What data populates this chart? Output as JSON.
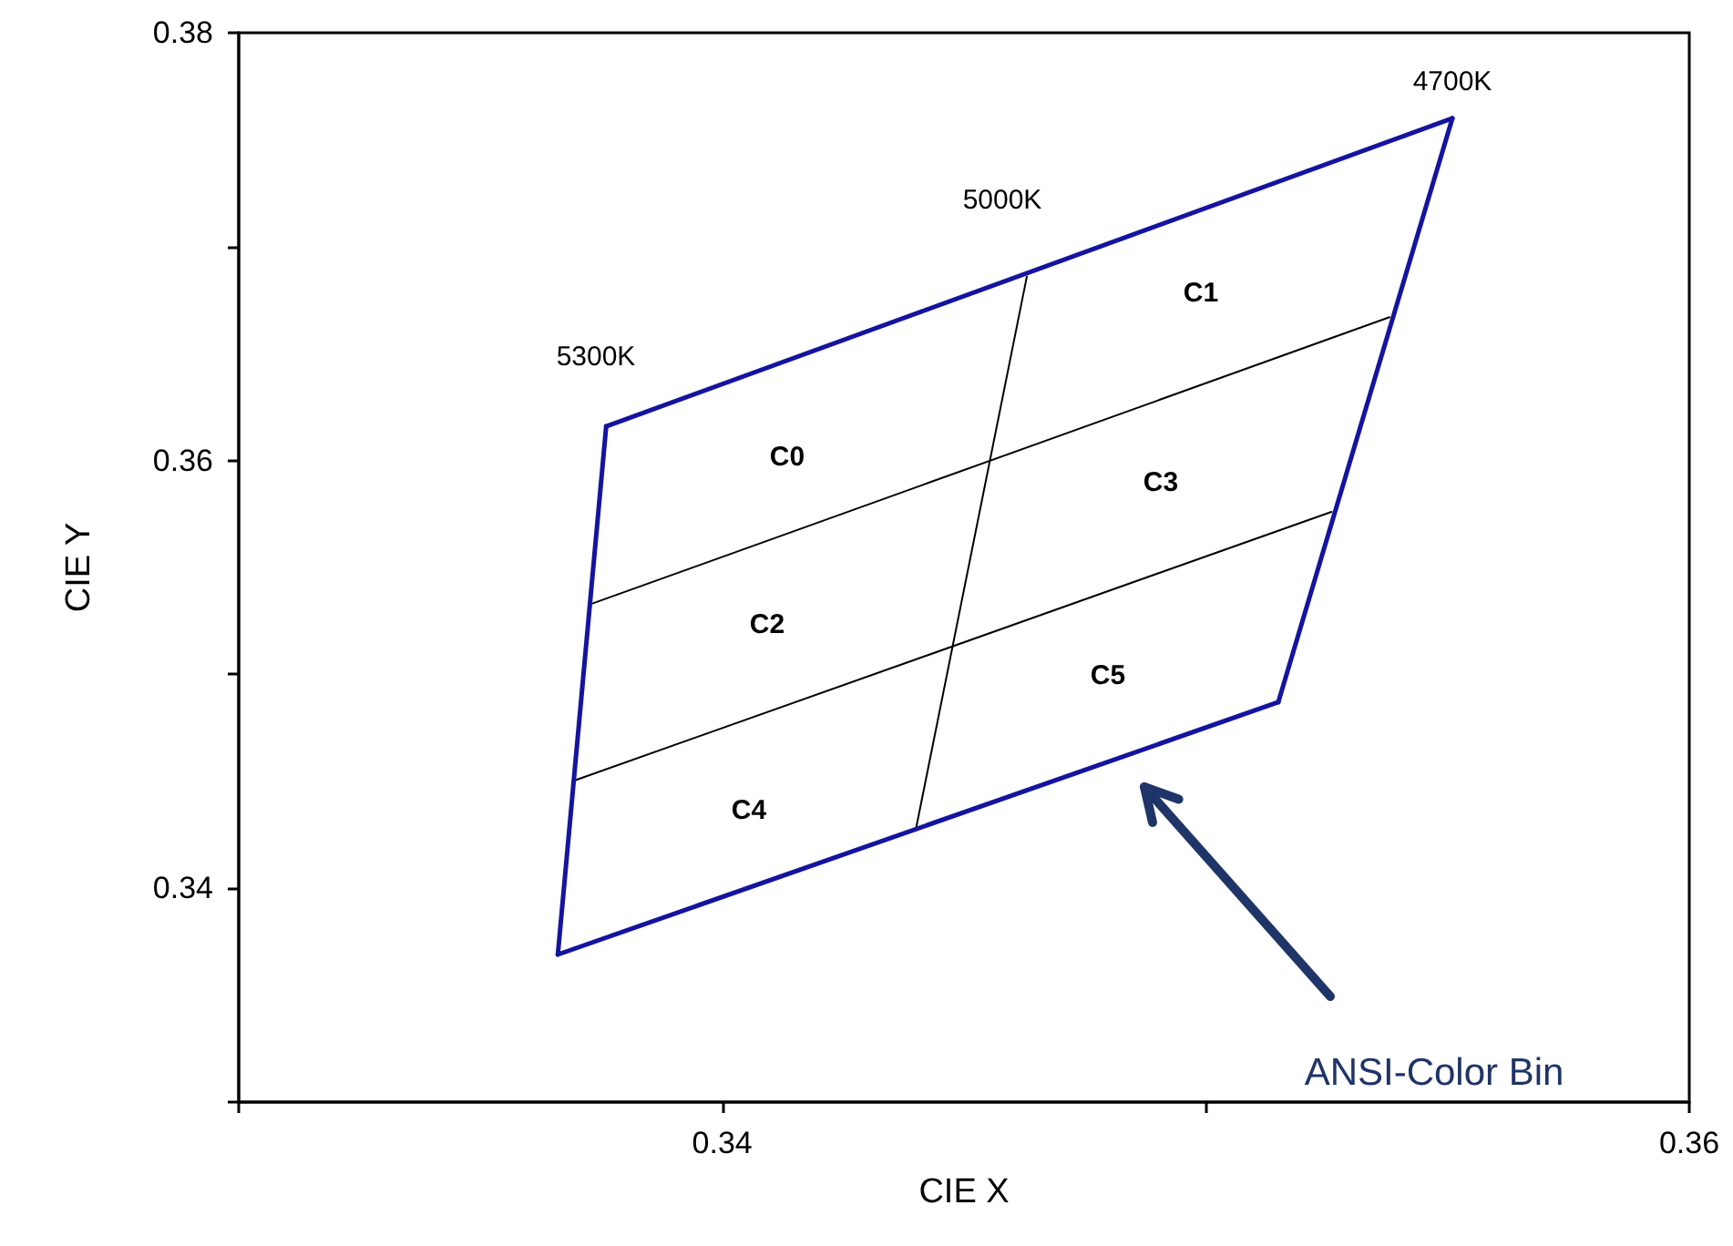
{
  "chart_data": {
    "type": "line",
    "xlabel": "CIE X",
    "ylabel": "CIE Y",
    "xlim": [
      0.33,
      0.36
    ],
    "ylim": [
      0.33,
      0.38
    ],
    "xticks": [
      {
        "value": 0.33,
        "label": null
      },
      0.34,
      {
        "value": 0.35,
        "label": null
      },
      0.36
    ],
    "yticks": [
      {
        "value": 0.33,
        "label": null
      },
      0.34,
      {
        "value": 0.35,
        "label": null
      },
      0.36,
      {
        "value": 0.37,
        "label": null
      },
      0.38
    ],
    "grid": false,
    "marker": "none",
    "line_style": "solid",
    "series": [
      {
        "color": "#000000",
        "x": [
          0.344,
          0.3463
        ],
        "values": [
          0.3427,
          0.3686
        ]
      },
      {
        "color": "#000000",
        "x": [
          0.3373,
          0.3538
        ],
        "values": [
          0.3533,
          0.3667
        ]
      },
      {
        "color": "#000000",
        "x": [
          0.3369,
          0.3526
        ],
        "values": [
          0.345,
          0.3576
        ]
      },
      {
        "color": "#1414a0",
        "x": [
          0.3376,
          0.3551
        ],
        "values": [
          0.3616,
          0.376
        ]
      },
      {
        "color": "#1414a0",
        "x": [
          0.3515,
          0.3551
        ],
        "values": [
          0.3487,
          0.376
        ]
      },
      {
        "color": "#1414a0",
        "x": [
          0.3366,
          0.3515
        ],
        "values": [
          0.3369,
          0.3487
        ]
      },
      {
        "color": "#1414a0",
        "x": [
          0.3366,
          0.3376
        ],
        "values": [
          0.3369,
          0.3616
        ]
      }
    ],
    "annotations": [
      "5300K",
      "5000K",
      "4700K",
      "C0",
      "C1",
      "C2",
      "C3",
      "C4",
      "C5",
      "ANSI-Color Bin"
    ]
  }
}
